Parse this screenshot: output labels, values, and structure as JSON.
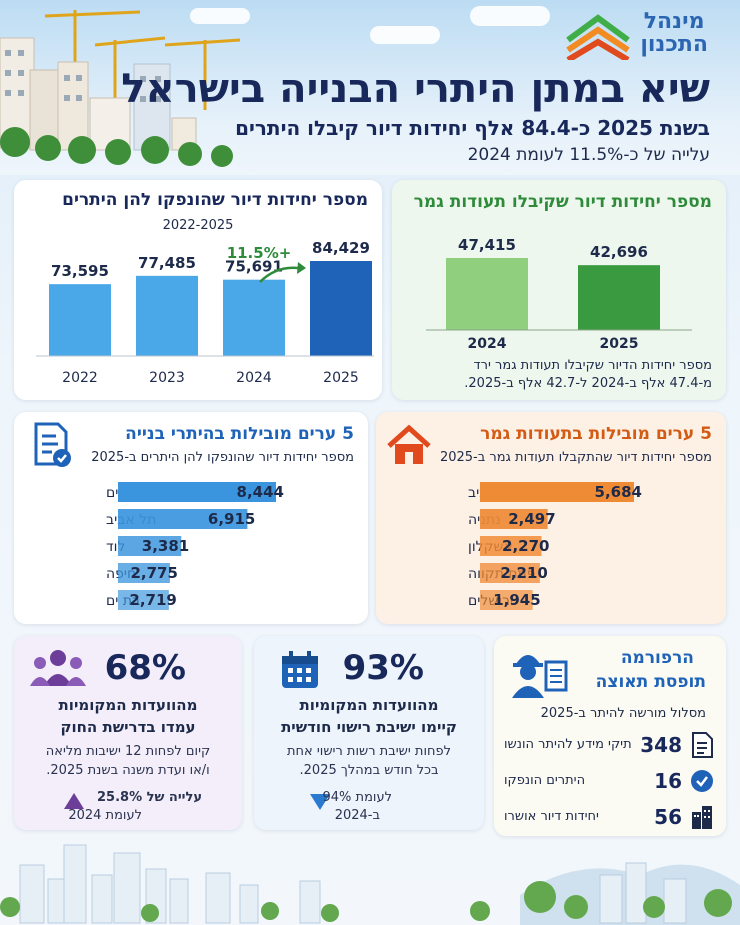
{
  "header": {
    "logo_line1": "מינהל",
    "logo_line2": "התכנון",
    "title": "שיא במתן היתרי הבנייה בישראל",
    "subtitle": "בשנת 2025 כ-84.4 אלף יחידות דיור קיבלו היתרים",
    "subtitle2": "עלייה של כ-11.5% לעומת 2024"
  },
  "colors": {
    "permits_bar": "#4aa7e8",
    "permits_bar_2025": "#1f63b8",
    "completion_bar": "#8fcf7e",
    "completion_bar_2025": "#3a9a3f",
    "city_permits_bar": "#3b95de",
    "city_completion_bar": "#ef8a35",
    "green_title": "#2e8b3a",
    "orange_title": "#d35b14",
    "arrow_green": "#2e8b3a"
  },
  "permits_card": {
    "title": "מספר יחידות דיור שהונפקו להן היתרים",
    "period": "2022-2025",
    "growth_label": "+11.5%"
  },
  "completion_card": {
    "title": "מספר יחידות דיור שקיבלו תעודות גמר",
    "note_line1": "מספר יחידות הדיור שקיבלו תעודות גמר ירד",
    "note_line2": "מ-47.4 אלף ב-2024 ל-42.7 אלף ב-2025."
  },
  "city_permits_card": {
    "title": "5 ערים מובילות בהיתרי בנייה",
    "subtitle": "מספר יחידות דיור שהונפקו להן היתרים ב-2025",
    "icon": "document-check-icon"
  },
  "city_completion_card": {
    "title": "5 ערים מובילות בתעודות גמר",
    "subtitle": "מספר יחידות דיור שהתקבלו תעודות גמר ב-2025",
    "icon": "house-icon"
  },
  "committees_law": {
    "pct": "68%",
    "line1": "מהוועדות המקומיות",
    "line2": "עמדו בדרישת החוק",
    "note1": "קיום לפחות 12 ישיבות מליאה",
    "note2": "ו/או ועדת משנה בשנת 2025.",
    "change1": "עלייה של 25.8%",
    "change2": "לעומת 2024",
    "icon": "people-icon"
  },
  "committees_monthly": {
    "pct": "93%",
    "line1": "מהוועדות המקומיות",
    "line2": "קיימו ישיבת רישוי חודשית",
    "note1": "לפחות ישיבת רשות רישוי אחת",
    "note2": "בכל חודש במהלך 2025.",
    "change1": "לעומת 94%",
    "change2": "ב-2024",
    "icon": "calendar-icon"
  },
  "reform": {
    "title1": "הרפורמה",
    "title2": "תופסת תאוצה",
    "subtitle": "מסלול מורשה להיתר ב-2025",
    "items": [
      {
        "value": "348",
        "label": "תיקי מידע להיתר הונשו",
        "icon": "file-icon"
      },
      {
        "value": "16",
        "label": "היתרים הונפקו",
        "icon": "check-circle-icon"
      },
      {
        "value": "56",
        "label": "יחידות דיור אושרו",
        "icon": "building-icon"
      }
    ],
    "icon": "engineer-icon"
  },
  "chart_data": [
    {
      "type": "bar",
      "title": "מספר יחידות דיור שהונפקו להן היתרים",
      "subtitle": "2022-2025",
      "categories": [
        "2022",
        "2023",
        "2024",
        "2025"
      ],
      "values": [
        73595,
        77485,
        75691,
        84429
      ],
      "value_labels": [
        "73,595",
        "77,485",
        "75,691",
        "84,429"
      ],
      "annotation": "+11.5%"
    },
    {
      "type": "bar",
      "title": "מספר יחידות דיור שקיבלו תעודות גמר",
      "categories": [
        "2024",
        "2025"
      ],
      "values": [
        47415,
        42696
      ],
      "value_labels": [
        "47,415",
        "42,696"
      ]
    },
    {
      "type": "bar",
      "title": "5 ערים מובילות בהיתרי בנייה",
      "categories": [
        "ירושלים",
        "תל אביב",
        "לוד",
        "חיפה",
        "בת ים"
      ],
      "values": [
        8444,
        6915,
        3381,
        2775,
        2719
      ],
      "value_labels": [
        "8,444",
        "6,915",
        "3,381",
        "2,775",
        "2,719"
      ]
    },
    {
      "type": "bar",
      "title": "5 ערים מובילות בתעודות גמר",
      "categories": [
        "תל אביב",
        "נתניה",
        "אשקלון",
        "פתח תקווה",
        "ירושלים"
      ],
      "values": [
        5684,
        2497,
        2270,
        2210,
        1945
      ],
      "value_labels": [
        "5,684",
        "2,497",
        "2,270",
        "2,210",
        "1,945"
      ]
    }
  ]
}
